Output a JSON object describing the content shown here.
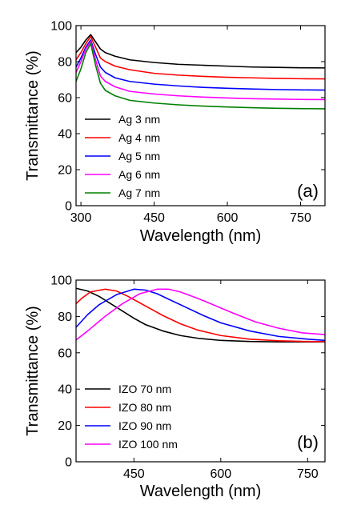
{
  "chart_data": [
    {
      "type": "line",
      "panel_label": "(a)",
      "xlabel": "Wavelength (nm)",
      "ylabel": "Transmittance (%)",
      "xlim": [
        290,
        800
      ],
      "ylim": [
        0,
        100
      ],
      "xticks": [
        300,
        450,
        600,
        750
      ],
      "yticks": [
        0,
        20,
        40,
        60,
        80,
        100
      ],
      "grid": false,
      "legend_position": "bottom-left",
      "series": [
        {
          "name": "Ag 3 nm",
          "color": "#000000",
          "points": [
            [
              290,
              85
            ],
            [
              300,
              88
            ],
            [
              310,
              92
            ],
            [
              320,
              95
            ],
            [
              330,
              91
            ],
            [
              340,
              87
            ],
            [
              350,
              85
            ],
            [
              370,
              83
            ],
            [
              400,
              81
            ],
            [
              450,
              79.5
            ],
            [
              500,
              78.5
            ],
            [
              550,
              78
            ],
            [
              600,
              77.5
            ],
            [
              650,
              77
            ],
            [
              700,
              76.8
            ],
            [
              750,
              76.6
            ],
            [
              800,
              76.5
            ]
          ]
        },
        {
          "name": "Ag 4 nm",
          "color": "#ff0000",
          "points": [
            [
              290,
              81
            ],
            [
              300,
              85
            ],
            [
              310,
              90
            ],
            [
              320,
              94
            ],
            [
              330,
              88
            ],
            [
              340,
              82
            ],
            [
              350,
              80
            ],
            [
              370,
              77.5
            ],
            [
              400,
              75.5
            ],
            [
              450,
              73.5
            ],
            [
              500,
              72.5
            ],
            [
              550,
              71.8
            ],
            [
              600,
              71.3
            ],
            [
              650,
              71
            ],
            [
              700,
              70.7
            ],
            [
              750,
              70.5
            ],
            [
              800,
              70.4
            ]
          ]
        },
        {
          "name": "Ag 5 nm",
          "color": "#0000ff",
          "points": [
            [
              290,
              77
            ],
            [
              300,
              82
            ],
            [
              310,
              88
            ],
            [
              320,
              92
            ],
            [
              330,
              84
            ],
            [
              340,
              77
            ],
            [
              350,
              74
            ],
            [
              370,
              71
            ],
            [
              400,
              69
            ],
            [
              450,
              67.5
            ],
            [
              500,
              66.5
            ],
            [
              550,
              65.7
            ],
            [
              600,
              65.2
            ],
            [
              650,
              64.8
            ],
            [
              700,
              64.5
            ],
            [
              750,
              64.3
            ],
            [
              800,
              64.2
            ]
          ]
        },
        {
          "name": "Ag 6 nm",
          "color": "#ff00ff",
          "points": [
            [
              290,
              74
            ],
            [
              300,
              80
            ],
            [
              310,
              87
            ],
            [
              320,
              91
            ],
            [
              330,
              81
            ],
            [
              340,
              72
            ],
            [
              350,
              69
            ],
            [
              370,
              66
            ],
            [
              400,
              63.5
            ],
            [
              450,
              62
            ],
            [
              500,
              61
            ],
            [
              550,
              60.3
            ],
            [
              600,
              59.8
            ],
            [
              650,
              59.4
            ],
            [
              700,
              59.2
            ],
            [
              750,
              59
            ],
            [
              800,
              58.9
            ]
          ]
        },
        {
          "name": "Ag 7 nm",
          "color": "#008000",
          "points": [
            [
              290,
              69
            ],
            [
              300,
              76
            ],
            [
              310,
              85
            ],
            [
              320,
              90
            ],
            [
              330,
              78
            ],
            [
              340,
              68
            ],
            [
              350,
              64
            ],
            [
              370,
              61
            ],
            [
              400,
              58.5
            ],
            [
              450,
              57
            ],
            [
              500,
              56
            ],
            [
              550,
              55.3
            ],
            [
              600,
              54.8
            ],
            [
              650,
              54.4
            ],
            [
              700,
              54.1
            ],
            [
              750,
              53.9
            ],
            [
              800,
              53.8
            ]
          ]
        }
      ]
    },
    {
      "type": "line",
      "panel_label": "(b)",
      "xlabel": "Wavelength (nm)",
      "ylabel": "Transmittance (%)",
      "xlim": [
        350,
        780
      ],
      "ylim": [
        0,
        100
      ],
      "xticks": [
        450,
        600,
        750
      ],
      "yticks": [
        0,
        20,
        40,
        60,
        80,
        100
      ],
      "grid": false,
      "legend_position": "bottom-left",
      "series": [
        {
          "name": "IZO 70 nm",
          "color": "#000000",
          "points": [
            [
              350,
              95.5
            ],
            [
              370,
              94
            ],
            [
              390,
              91
            ],
            [
              410,
              87
            ],
            [
              430,
              83
            ],
            [
              450,
              79
            ],
            [
              470,
              75.5
            ],
            [
              500,
              72
            ],
            [
              530,
              69.5
            ],
            [
              560,
              68
            ],
            [
              600,
              66.8
            ],
            [
              650,
              66.2
            ],
            [
              700,
              66
            ],
            [
              780,
              66
            ]
          ]
        },
        {
          "name": "IZO 80 nm",
          "color": "#ff0000",
          "points": [
            [
              350,
              87
            ],
            [
              360,
              90
            ],
            [
              375,
              93.5
            ],
            [
              400,
              95
            ],
            [
              420,
              94
            ],
            [
              440,
              91
            ],
            [
              460,
              87.5
            ],
            [
              480,
              84
            ],
            [
              500,
              80.5
            ],
            [
              530,
              76
            ],
            [
              560,
              72.5
            ],
            [
              600,
              69.5
            ],
            [
              650,
              67.5
            ],
            [
              700,
              66.6
            ],
            [
              750,
              66.2
            ],
            [
              780,
              66.1
            ]
          ]
        },
        {
          "name": "IZO 90 nm",
          "color": "#0000ff",
          "points": [
            [
              350,
              74
            ],
            [
              370,
              81
            ],
            [
              390,
              86.5
            ],
            [
              420,
              92
            ],
            [
              450,
              95
            ],
            [
              470,
              94.5
            ],
            [
              490,
              92.5
            ],
            [
              510,
              89.5
            ],
            [
              540,
              85
            ],
            [
              570,
              80.5
            ],
            [
              600,
              76.5
            ],
            [
              650,
              72
            ],
            [
              700,
              69
            ],
            [
              750,
              67.5
            ],
            [
              780,
              66.8
            ]
          ]
        },
        {
          "name": "IZO 100 nm",
          "color": "#ff00ff",
          "points": [
            [
              350,
              67
            ],
            [
              370,
              72
            ],
            [
              400,
              80
            ],
            [
              430,
              87
            ],
            [
              460,
              92.5
            ],
            [
              490,
              95
            ],
            [
              510,
              95
            ],
            [
              530,
              93.5
            ],
            [
              560,
              90
            ],
            [
              590,
              86
            ],
            [
              620,
              82
            ],
            [
              660,
              77
            ],
            [
              700,
              73.5
            ],
            [
              740,
              71
            ],
            [
              780,
              70
            ]
          ]
        }
      ]
    }
  ]
}
